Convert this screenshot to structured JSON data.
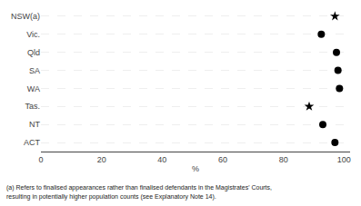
{
  "chart_data": {
    "type": "scatter",
    "categories": [
      "NSW(a)",
      "Vic.",
      "Qld",
      "SA",
      "WA",
      "Tas.",
      "NT",
      "ACT"
    ],
    "values": [
      97.0,
      92.5,
      97.5,
      98.0,
      98.5,
      88.5,
      93.0,
      97.0
    ],
    "markers": [
      "star",
      "circle",
      "circle",
      "circle",
      "circle",
      "star",
      "circle",
      "circle"
    ],
    "colors": [
      "black",
      "black",
      "black",
      "black",
      "black",
      "black",
      "black",
      "black"
    ],
    "xlabel": "%",
    "xlim": [
      0,
      102
    ],
    "xticks": [
      0,
      20,
      40,
      60,
      80,
      100
    ],
    "grid": true,
    "annotations": [
      "(a) Refers to finalised appearances rather than finalised defendants in the Magistrates' Courts,",
      "resulting in potentially higher population counts (see Explanatory Note 14)."
    ]
  }
}
